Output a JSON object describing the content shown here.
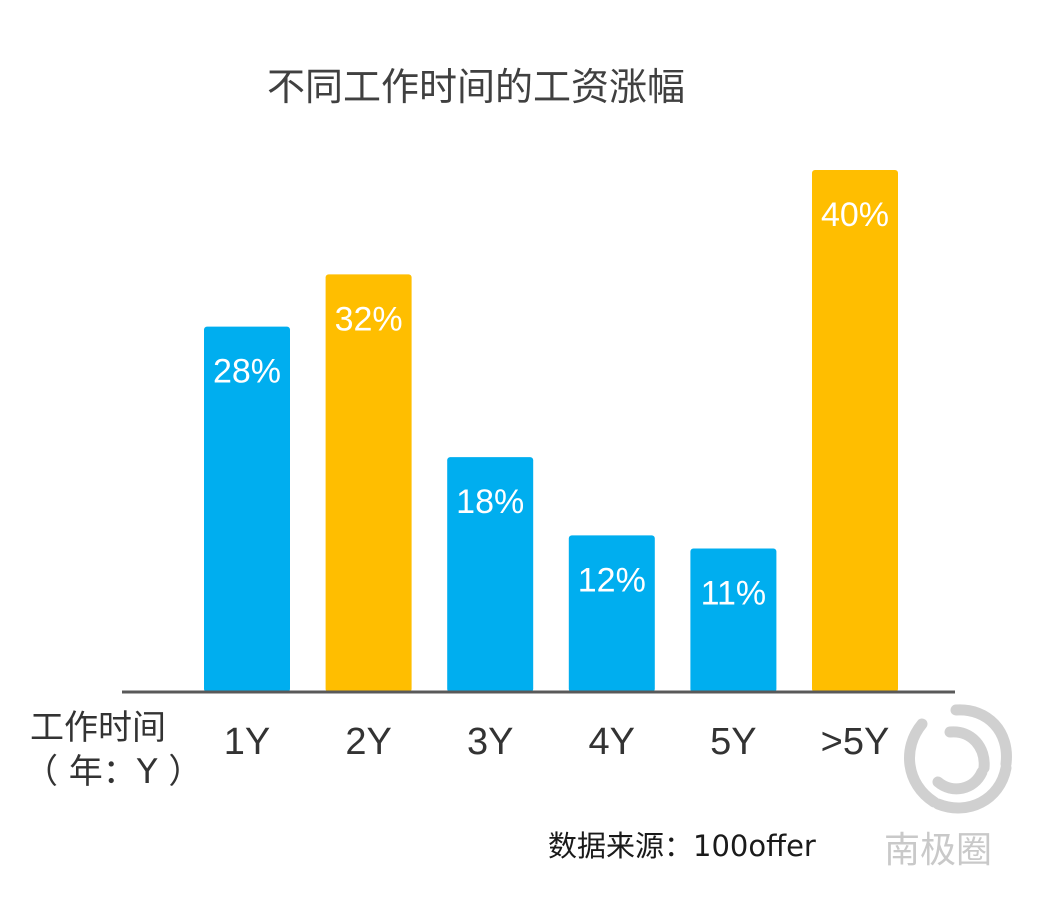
{
  "chart_data": {
    "type": "bar",
    "title": "不同工作时间的工资涨幅",
    "xlabel_line1": "工作时间",
    "xlabel_line2": "（ 年：Y ）",
    "categories": [
      "1Y",
      "2Y",
      "3Y",
      "4Y",
      "5Y",
      ">5Y"
    ],
    "values": [
      28,
      32,
      18,
      12,
      11,
      40
    ],
    "value_labels": [
      "28%",
      "32%",
      "18%",
      "12%",
      "11%",
      "40%"
    ],
    "value_unit": "%",
    "bar_colors": [
      "#00aeef",
      "#ffbe00",
      "#00aeef",
      "#00aeef",
      "#00aeef",
      "#ffbe00"
    ],
    "ylim": [
      0,
      40
    ],
    "grid": false,
    "legend": "none"
  },
  "source": "数据来源：100offer",
  "watermark": {
    "text": "南极圈",
    "icon": "swirl-logo-icon",
    "color": "#c9c9c9"
  },
  "colors": {
    "axis_line": "#595959",
    "value_text": "#ffffff",
    "tick_text": "#333333"
  }
}
